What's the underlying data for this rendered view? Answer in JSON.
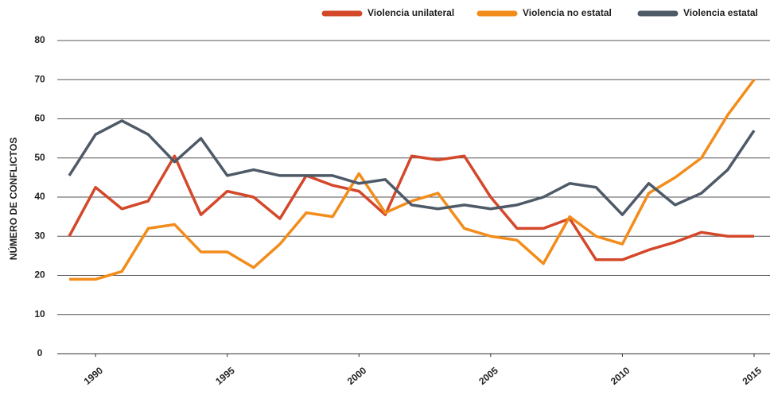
{
  "chart_data": {
    "type": "line",
    "ylabel": "NÚMERO DE CONFLICTOS",
    "x": [
      1989,
      1990,
      1991,
      1992,
      1993,
      1994,
      1995,
      1996,
      1997,
      1998,
      1999,
      2000,
      2001,
      2002,
      2003,
      2004,
      2005,
      2006,
      2007,
      2008,
      2009,
      2010,
      2011,
      2012,
      2013,
      2014,
      2015
    ],
    "series": [
      {
        "name": "Violencia unilateral",
        "color": "#d4482a",
        "values": [
          30,
          42.5,
          37,
          39,
          50.5,
          35.5,
          41.5,
          40,
          34.5,
          45.5,
          43,
          41.5,
          35.5,
          50.5,
          49.5,
          50.5,
          40,
          32,
          32,
          34.5,
          24,
          24,
          26.5,
          28.5,
          31,
          30,
          30
        ]
      },
      {
        "name": "Violencia no estatal",
        "color": "#f28c1a",
        "values": [
          19,
          19,
          21,
          32,
          33,
          26,
          26,
          22,
          28,
          36,
          35,
          46,
          36,
          39,
          41,
          32,
          30,
          29,
          23,
          35,
          30,
          28,
          41,
          45,
          50,
          61,
          70
        ]
      },
      {
        "name": "Violencia estatal",
        "color": "#4e5a68",
        "values": [
          45.5,
          56,
          59.5,
          56,
          49,
          55,
          45.5,
          47,
          45.5,
          45.5,
          45.5,
          43.5,
          44.5,
          38,
          37,
          38,
          37,
          38,
          40,
          43.5,
          42.5,
          35.5,
          43.5,
          38,
          41,
          47,
          57
        ]
      }
    ],
    "xlim": [
      1989,
      2015
    ],
    "xticks": [
      1990,
      1995,
      2000,
      2005,
      2010,
      2015
    ],
    "ylim": [
      0,
      80
    ],
    "yticks": [
      0,
      10,
      20,
      30,
      40,
      50,
      60,
      70,
      80
    ],
    "grid": true,
    "legend": "top-right"
  }
}
